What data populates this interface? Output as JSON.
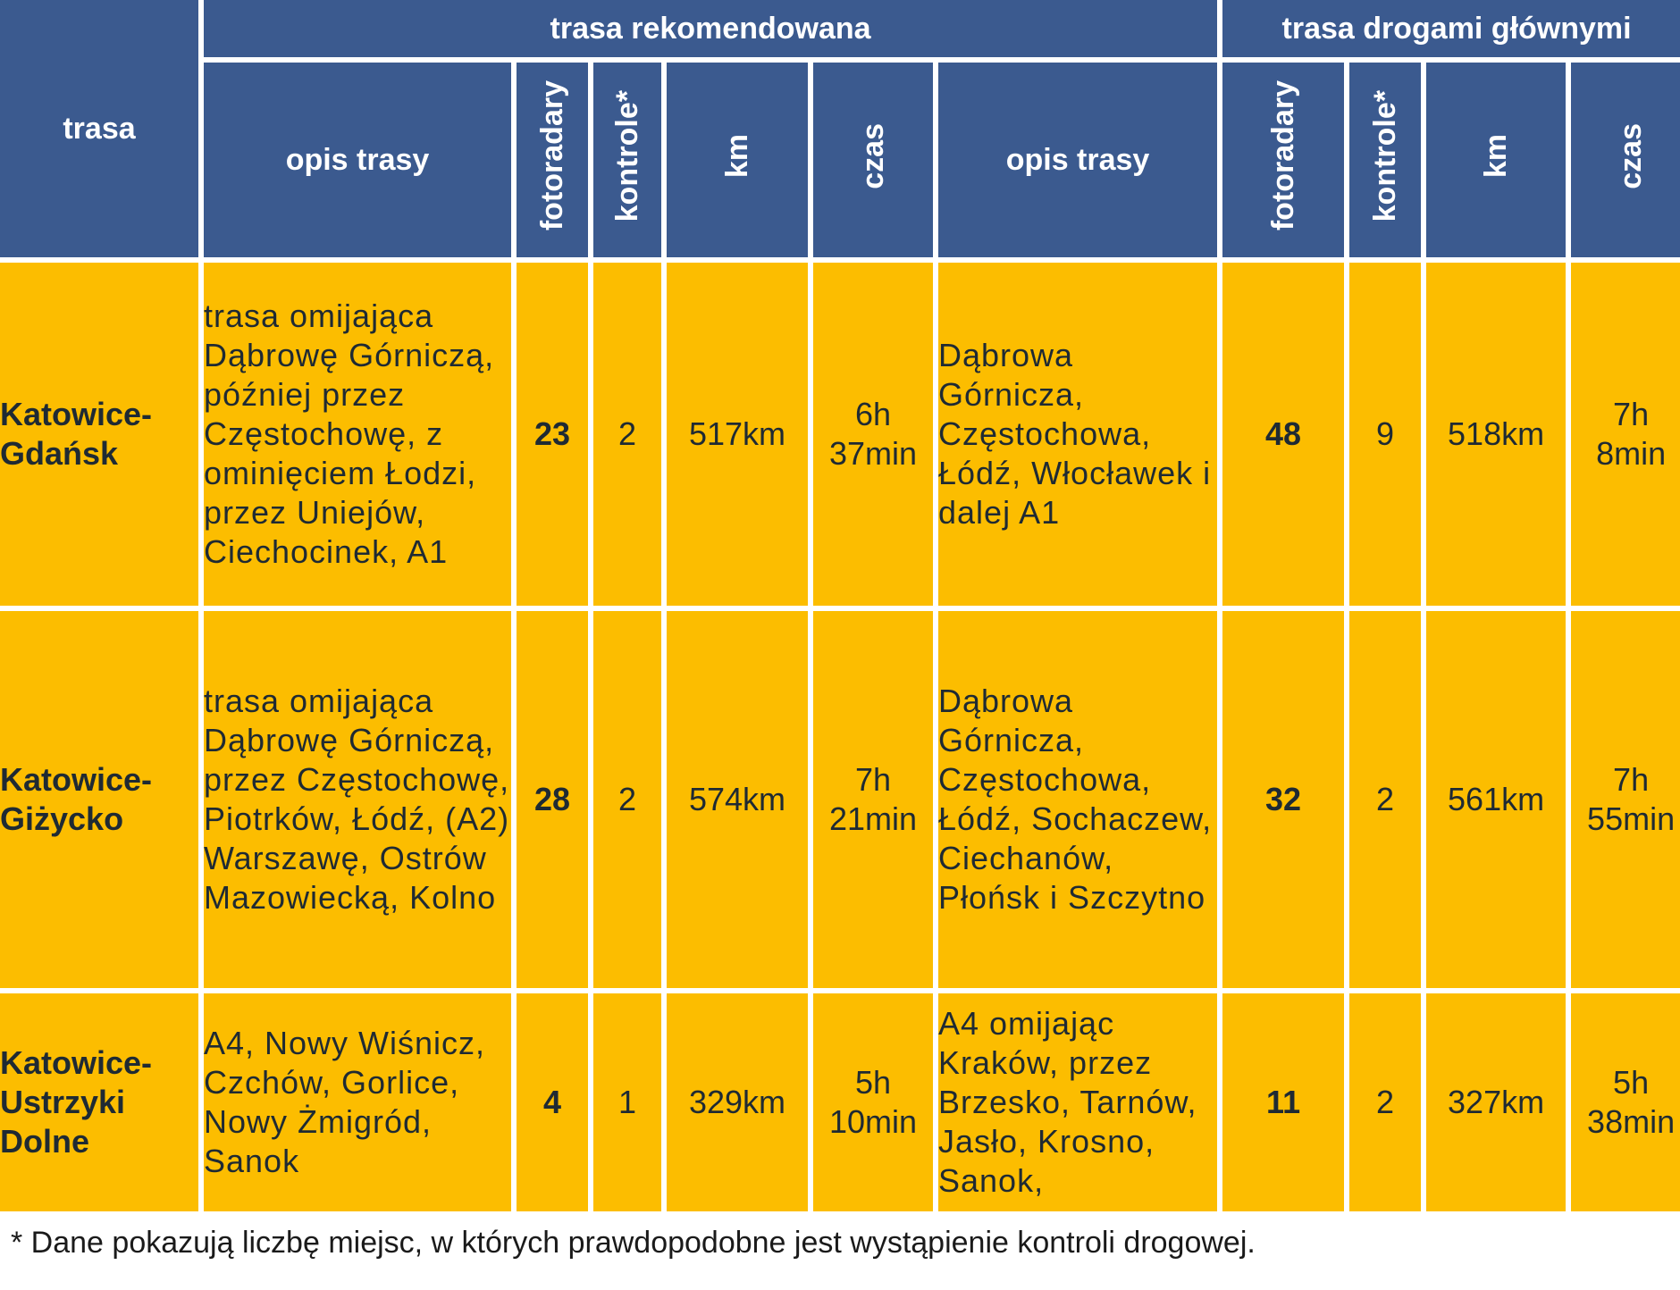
{
  "header": {
    "route_col": "trasa",
    "group_recommended": "trasa rekomendowana",
    "group_main_roads": "trasa drogami głównymi",
    "col_description": "opis trasy",
    "col_speed_cameras": "fotoradary",
    "col_checks": "kontrole*",
    "col_km": "km",
    "col_time": "czas"
  },
  "rows": [
    {
      "route": "Katowice-\nGdańsk",
      "rec_description": "trasa omijająca Dąbrowę Górniczą, później przez Częstochowę, z ominięciem Łodzi, przez Uniejów, Ciechocinek, A1",
      "rec_cameras": "23",
      "rec_checks": "2",
      "rec_km": "517km",
      "rec_time": "6h\n37min",
      "main_description": "Dąbrowa Górnicza, Częstochowa, Łódź, Włocławek i dalej A1",
      "main_cameras": "48",
      "main_checks": "9",
      "main_km": "518km",
      "main_time": "7h\n8min"
    },
    {
      "route": "Katowice-\nGiżycko",
      "rec_description": "trasa omijająca Dąbrowę Górniczą, przez Częstochowę, Piotrków, Łódź, (A2) Warszawę, Ostrów Mazowiecką, Kolno",
      "rec_cameras": "28",
      "rec_checks": "2",
      "rec_km": "574km",
      "rec_time": "7h\n21min",
      "main_description": "Dąbrowa Górnicza, Częstochowa, Łódź, Sochaczew, Ciechanów, Płońsk i Szczytno",
      "main_cameras": "32",
      "main_checks": "2",
      "main_km": "561km",
      "main_time": "7h\n55min"
    },
    {
      "route": "Katowice-\nUstrzyki\nDolne",
      "rec_description": "A4, Nowy Wiśnicz, Czchów, Gorlice, Nowy Żmigród, Sanok",
      "rec_cameras": "4",
      "rec_checks": "1",
      "rec_km": "329km",
      "rec_time": "5h\n10min",
      "main_description": "A4 omijając Kraków, przez Brzesko, Tarnów, Jasło, Krosno, Sanok,",
      "main_cameras": "11",
      "main_checks": "2",
      "main_km": "327km",
      "main_time": "5h\n38min"
    }
  ],
  "footnote": "* Dane pokazują liczbę miejsc, w których prawdopodobne jest wystąpienie kontroli drogowej."
}
